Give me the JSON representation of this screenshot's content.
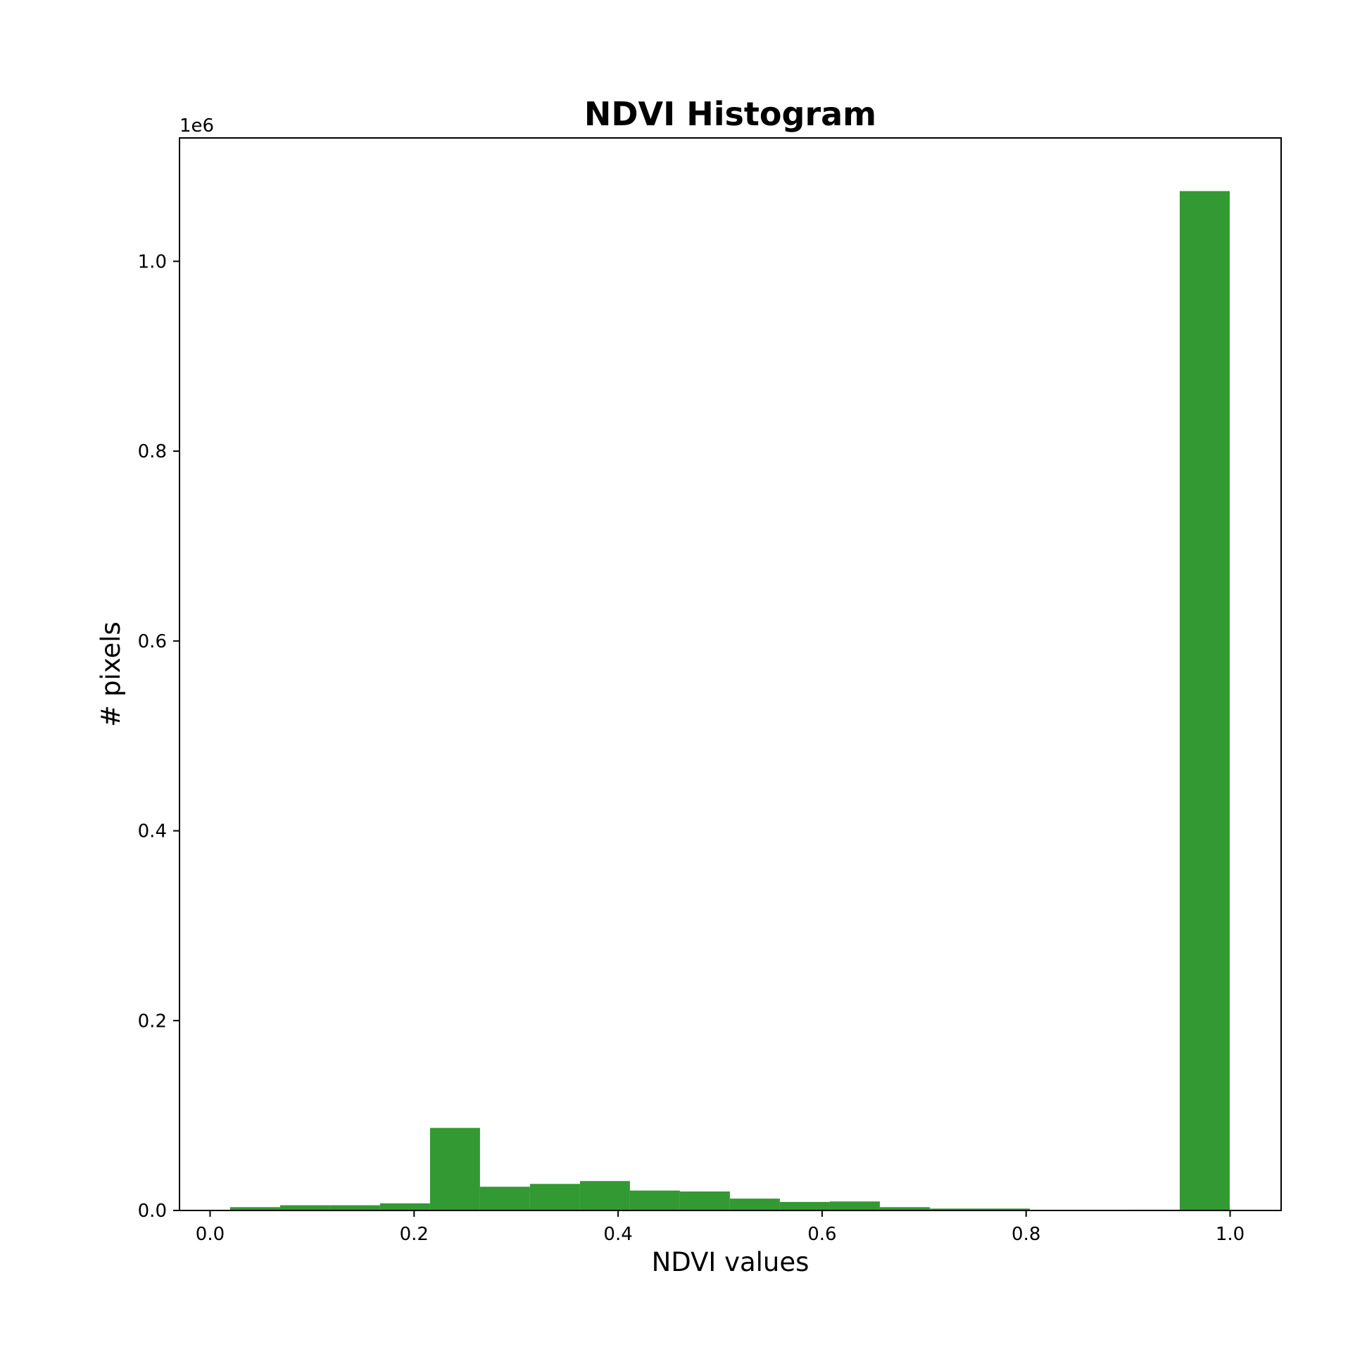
{
  "chart_data": {
    "type": "bar",
    "title": "NDVI Histogram",
    "xlabel": "NDVI values",
    "ylabel": "# pixels",
    "y_multiplier_label": "1e6",
    "xlim": [
      -0.03,
      1.05
    ],
    "ylim": [
      0,
      1.13
    ],
    "x_ticks": [
      0.0,
      0.2,
      0.4,
      0.6,
      0.8,
      1.0
    ],
    "x_tick_labels": [
      "0.0",
      "0.2",
      "0.4",
      "0.6",
      "0.8",
      "1.0"
    ],
    "y_ticks": [
      0.0,
      0.2,
      0.4,
      0.6,
      0.8,
      1.0
    ],
    "y_tick_labels": [
      "0.0",
      "0.2",
      "0.4",
      "0.6",
      "0.8",
      "1.0"
    ],
    "grid": false,
    "bar_color": "#339933",
    "bin_edges": [
      0.0196,
      0.0686,
      0.1176,
      0.1666,
      0.2156,
      0.2646,
      0.3136,
      0.3626,
      0.4116,
      0.4606,
      0.5096,
      0.5586,
      0.6076,
      0.6566,
      0.7056,
      0.7546,
      0.8036,
      0.8526,
      0.9016,
      0.9506,
      0.9996
    ],
    "values": [
      0.0035,
      0.0055,
      0.0055,
      0.0075,
      0.087,
      0.025,
      0.028,
      0.031,
      0.021,
      0.02,
      0.0125,
      0.009,
      0.0095,
      0.0035,
      0.002,
      0.002,
      0.0005,
      0.0005,
      0.0008,
      1.074
    ]
  }
}
